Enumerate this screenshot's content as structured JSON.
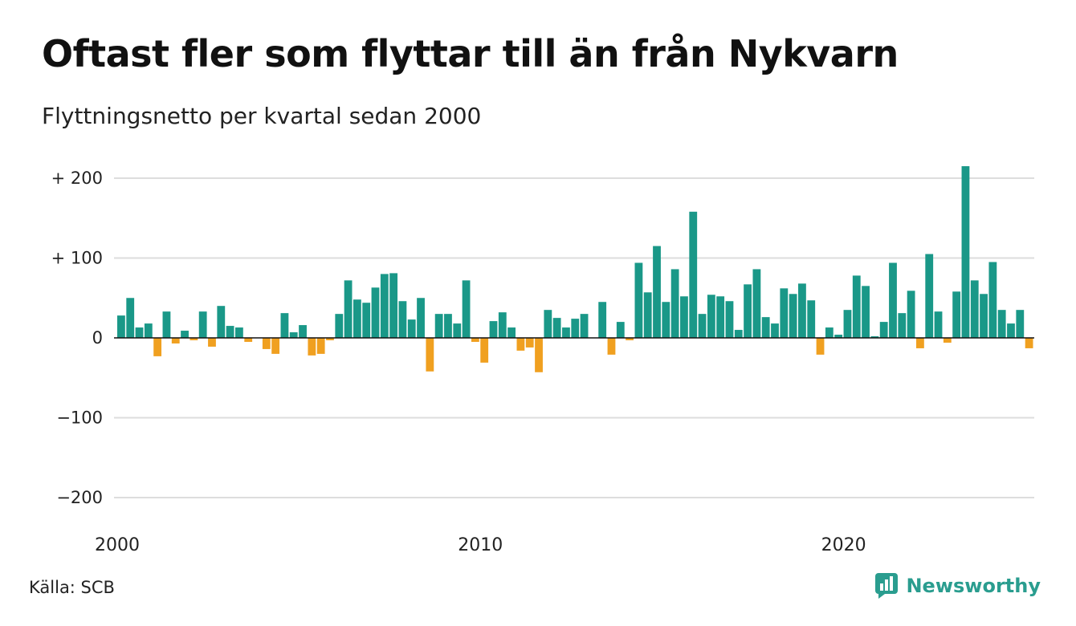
{
  "title": "Oftast fler som flyttar till än från Nykvarn",
  "subtitle": "Flyttningsnetto per kvartal sedan 2000",
  "source": "Källa: SCB",
  "brand": "Newsworthy",
  "colors": {
    "positive": "#1a9888",
    "negative": "#f0a020",
    "grid": "#dddddd",
    "brand": "#2a9d8f"
  },
  "chart_data": {
    "type": "bar",
    "title": "Oftast fler som flyttar till än från Nykvarn",
    "subtitle": "Flyttningsnetto per kvartal sedan 2000",
    "ylim": [
      -200,
      200
    ],
    "yticks": [
      200,
      100,
      0,
      -100,
      -200
    ],
    "ytick_labels": [
      "+ 200",
      "+ 100",
      "0",
      "−100",
      "−200"
    ],
    "xticks": [
      "2000",
      "2010",
      "2020"
    ],
    "xtick_positions": [
      2000,
      2010,
      2020
    ],
    "grid": true,
    "x_start": "2000 Q1",
    "x_step": "quarter",
    "values": [
      28,
      50,
      13,
      18,
      -23,
      33,
      -7,
      9,
      -3,
      33,
      -11,
      40,
      15,
      13,
      -5,
      0,
      -14,
      -20,
      31,
      7,
      16,
      -22,
      -20,
      -3,
      30,
      72,
      48,
      44,
      63,
      80,
      81,
      46,
      23,
      50,
      -42,
      30,
      30,
      18,
      72,
      -5,
      -31,
      21,
      32,
      13,
      -16,
      -12,
      -43,
      35,
      25,
      13,
      24,
      30,
      0,
      45,
      -21,
      20,
      -3,
      94,
      57,
      115,
      45,
      86,
      52,
      158,
      30,
      54,
      52,
      46,
      10,
      67,
      86,
      26,
      18,
      62,
      55,
      68,
      47,
      -21,
      13,
      4,
      35,
      78,
      65,
      2,
      20,
      94,
      31,
      59,
      -13,
      105,
      33,
      -6,
      58,
      215,
      72,
      55,
      95,
      35,
      18,
      35,
      -13
    ]
  }
}
